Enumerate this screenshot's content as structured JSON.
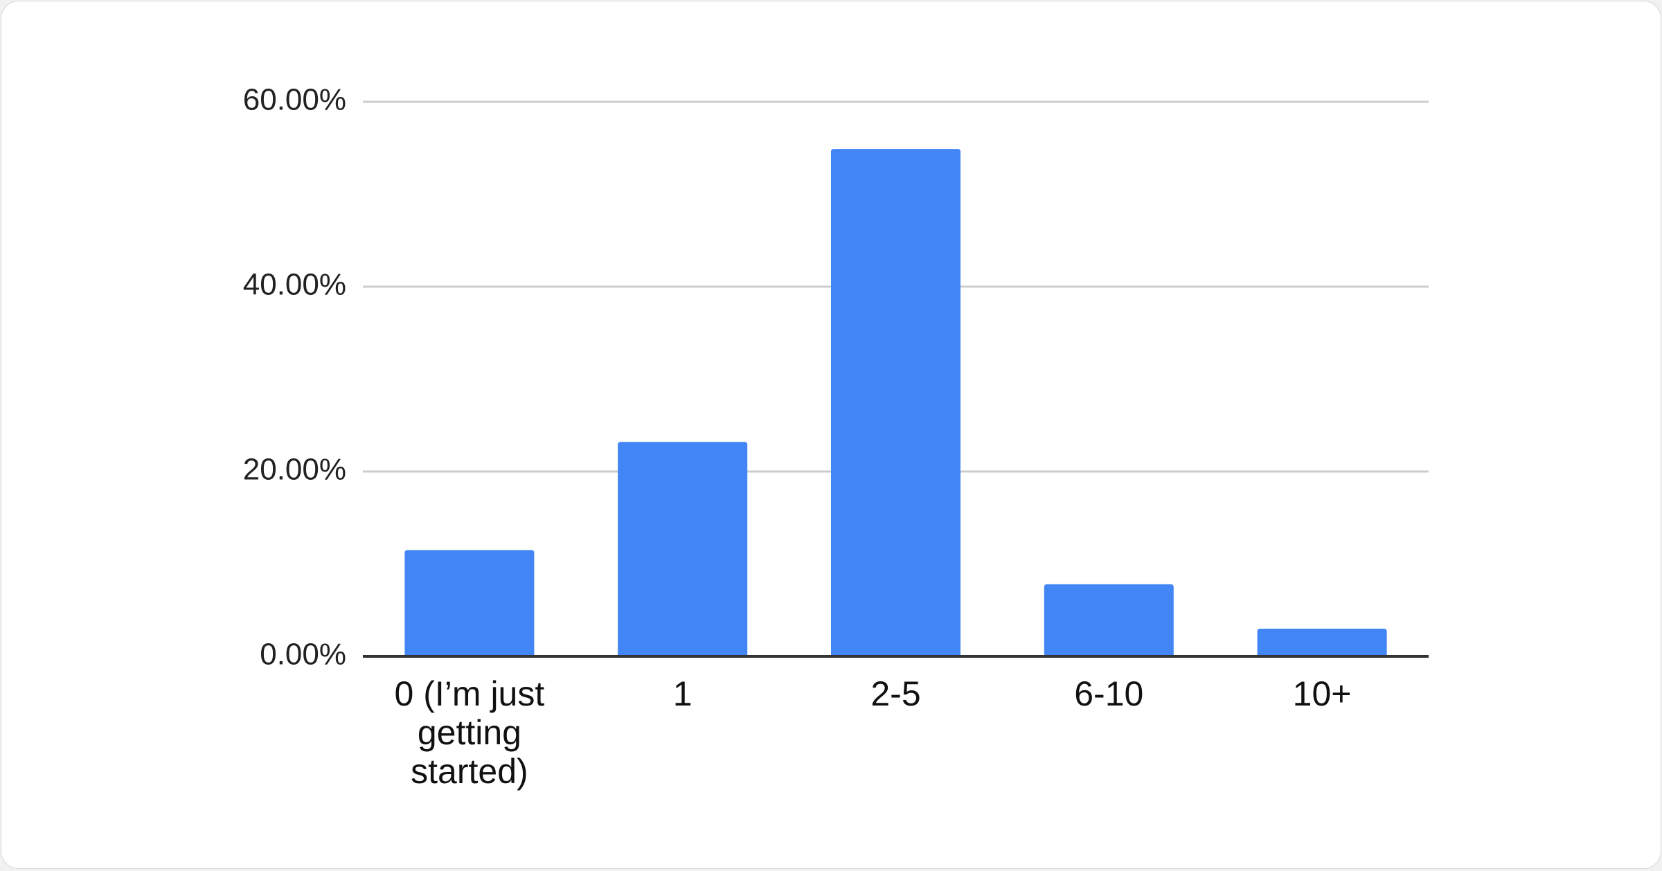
{
  "chart_data": {
    "type": "bar",
    "title": "",
    "xlabel": "",
    "ylabel": "",
    "categories": [
      "0 (I’m just getting started)",
      "1",
      "2-5",
      "6-10",
      "10+"
    ],
    "category_lines": [
      [
        "0 (I’m just",
        "getting",
        "started)"
      ],
      [
        "1"
      ],
      [
        "2-5"
      ],
      [
        "6-10"
      ],
      [
        "10+"
      ]
    ],
    "values": [
      11.5,
      23.2,
      54.9,
      7.8,
      3.0
    ],
    "value_unit": "%",
    "ylim": [
      0,
      60
    ],
    "yticks": [
      0,
      20,
      40,
      60
    ],
    "ytick_labels": [
      "0.00%",
      "20.00%",
      "40.00%",
      "60.00%"
    ],
    "grid": true,
    "legend": "none",
    "colors": {
      "bar": "#4285f4",
      "grid": "#cccccc",
      "axis": "#333333"
    }
  }
}
